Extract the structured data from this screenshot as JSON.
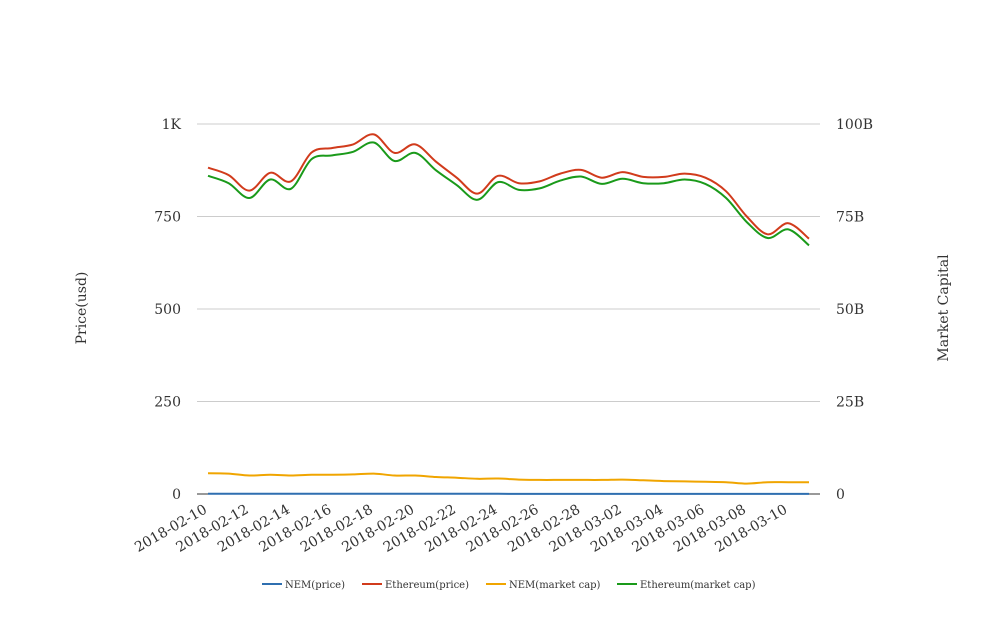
{
  "chart_data": {
    "type": "line",
    "title": "",
    "xlabel": "",
    "ylabel": "Price(usd)",
    "ylabel_right": "Market Capital",
    "ylim": [
      0,
      1000
    ],
    "ylim_right": [
      0,
      100000000000
    ],
    "y_ticks": [
      {
        "value": 0,
        "label": "0"
      },
      {
        "value": 250,
        "label": "250"
      },
      {
        "value": 500,
        "label": "500"
      },
      {
        "value": 750,
        "label": "750"
      },
      {
        "value": 1000,
        "label": "1K"
      }
    ],
    "y_right_ticks": [
      {
        "value": 0,
        "label": "0"
      },
      {
        "value": 25000000000,
        "label": "25B"
      },
      {
        "value": 50000000000,
        "label": "50B"
      },
      {
        "value": 75000000000,
        "label": "75B"
      },
      {
        "value": 100000000000,
        "label": "100B"
      }
    ],
    "grid": true,
    "legend_position": "bottom",
    "x": [
      "2018-02-10",
      "2018-02-11",
      "2018-02-12",
      "2018-02-13",
      "2018-02-14",
      "2018-02-15",
      "2018-02-16",
      "2018-02-17",
      "2018-02-18",
      "2018-02-19",
      "2018-02-20",
      "2018-02-21",
      "2018-02-22",
      "2018-02-23",
      "2018-02-24",
      "2018-02-25",
      "2018-02-26",
      "2018-02-27",
      "2018-02-28",
      "2018-03-01",
      "2018-03-02",
      "2018-03-03",
      "2018-03-04",
      "2018-03-05",
      "2018-03-06",
      "2018-03-07",
      "2018-03-08",
      "2018-03-09",
      "2018-03-10",
      "2018-03-11"
    ],
    "x_tick_labels": [
      "2018-02-10",
      "2018-02-12",
      "2018-02-14",
      "2018-02-16",
      "2018-02-18",
      "2018-02-20",
      "2018-02-22",
      "2018-02-24",
      "2018-02-26",
      "2018-02-28",
      "2018-03-02",
      "2018-03-04",
      "2018-03-06",
      "2018-03-08",
      "2018-03-10"
    ],
    "series": [
      {
        "name": "NEM(price)",
        "axis": "left",
        "color": "#2f6fb0",
        "values": [
          0.56,
          0.54,
          0.5,
          0.52,
          0.5,
          0.52,
          0.52,
          0.52,
          0.55,
          0.5,
          0.5,
          0.46,
          0.44,
          0.41,
          0.42,
          0.38,
          0.37,
          0.37,
          0.37,
          0.37,
          0.39,
          0.37,
          0.35,
          0.33,
          0.33,
          0.32,
          0.28,
          0.32,
          0.32,
          0.32
        ]
      },
      {
        "name": "Ethereum(price)",
        "axis": "left",
        "color": "#d13b1c",
        "values": [
          882,
          862,
          820,
          868,
          845,
          923,
          935,
          945,
          972,
          922,
          945,
          898,
          855,
          812,
          860,
          840,
          845,
          866,
          876,
          855,
          870,
          857,
          857,
          866,
          855,
          818,
          750,
          702,
          732,
          690
        ]
      },
      {
        "name": "NEM(market cap)",
        "axis": "right",
        "color": "#f0a500",
        "values": [
          5600000000.0,
          5500000000.0,
          5000000000.0,
          5200000000.0,
          5000000000.0,
          5200000000.0,
          5200000000.0,
          5300000000.0,
          5500000000.0,
          5000000000.0,
          5000000000.0,
          4600000000.0,
          4400000000.0,
          4100000000.0,
          4200000000.0,
          3900000000.0,
          3800000000.0,
          3800000000.0,
          3800000000.0,
          3800000000.0,
          3900000000.0,
          3700000000.0,
          3500000000.0,
          3400000000.0,
          3300000000.0,
          3200000000.0,
          2800000000.0,
          3200000000.0,
          3200000000.0,
          3200000000.0
        ]
      },
      {
        "name": "Ethereum(market cap)",
        "axis": "right",
        "color": "#1a9a1a",
        "values": [
          86000000000.0,
          84000000000.0,
          80000000000.0,
          85000000000.0,
          82500000000.0,
          90500000000.0,
          91500000000.0,
          92500000000.0,
          95000000000.0,
          90000000000.0,
          92200000000.0,
          87500000000.0,
          83500000000.0,
          79500000000.0,
          84300000000.0,
          82200000000.0,
          82600000000.0,
          84700000000.0,
          85800000000.0,
          83800000000.0,
          85200000000.0,
          84000000000.0,
          84000000000.0,
          85000000000.0,
          83800000000.0,
          80000000000.0,
          73500000000.0,
          69200000000.0,
          71500000000.0,
          67200000000.0
        ]
      }
    ]
  }
}
